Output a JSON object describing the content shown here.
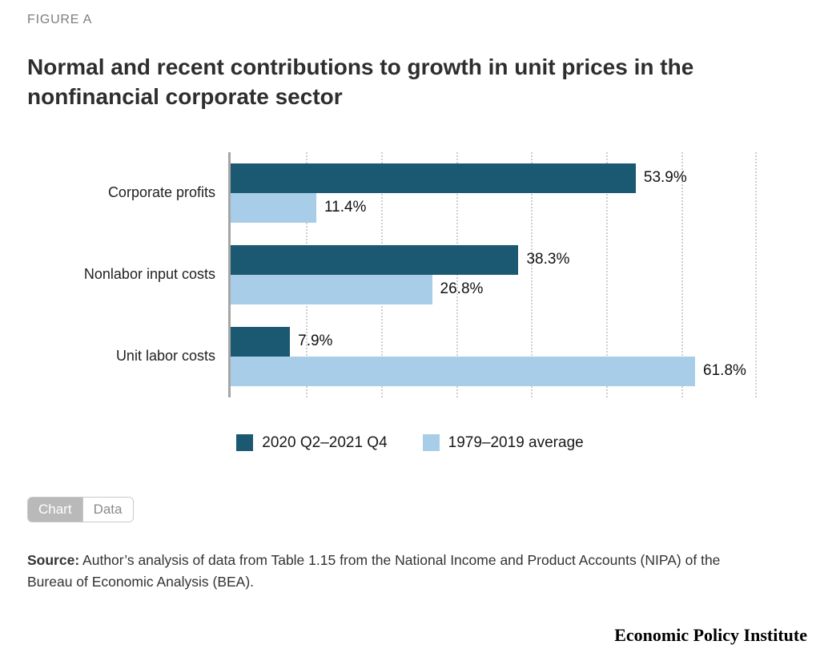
{
  "figure_label": "FIGURE A",
  "title": "Normal and recent contributions to growth in unit prices in the nonfinancial corporate sector",
  "chart_data": {
    "type": "bar",
    "orientation": "horizontal",
    "title": "Normal and recent contributions to growth in unit prices in the nonfinancial corporate sector",
    "categories": [
      "Corporate profits",
      "Nonlabor input costs",
      "Unit labor costs"
    ],
    "series": [
      {
        "name": "2020 Q2–2021 Q4",
        "color": "#1b5872",
        "values": [
          53.9,
          38.3,
          7.9
        ],
        "labels": [
          "53.9%",
          "38.3%",
          "7.9%"
        ]
      },
      {
        "name": "1979–2019 average",
        "color": "#a8cde8",
        "values": [
          11.4,
          26.8,
          61.8
        ],
        "labels": [
          "11.4%",
          "26.8%",
          "61.8%"
        ]
      }
    ],
    "xlim": [
      0,
      70
    ],
    "tick_interval": 10,
    "grid": "dotted-vertical",
    "legend_position": "bottom"
  },
  "toggle": {
    "chart_label": "Chart",
    "data_label": "Data"
  },
  "source": {
    "label": "Source:",
    "text": " Author’s analysis of data from Table 1.15 from the National Income and Product Accounts (NIPA) of the Bureau of Economic Analysis (BEA)."
  },
  "footer_brand": "Economic Policy Institute"
}
